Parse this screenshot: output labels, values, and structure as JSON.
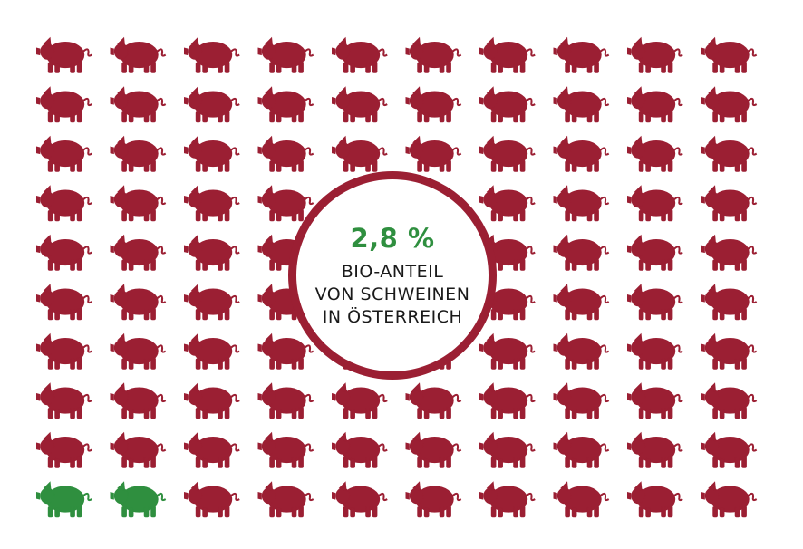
{
  "chart_data": {
    "type": "pictogram",
    "icon": "pig-icon",
    "total_icons": 100,
    "rows": 10,
    "cols": 10,
    "highlighted_value": 2.8,
    "highlight_label": "2,8 %",
    "caption_lines": [
      "BIO-ANTEIL",
      "VON SCHWEINEN",
      "IN ÖSTERREICH"
    ],
    "colors": {
      "base": "#9b1f33",
      "highlight": "#2f8f3f"
    }
  }
}
